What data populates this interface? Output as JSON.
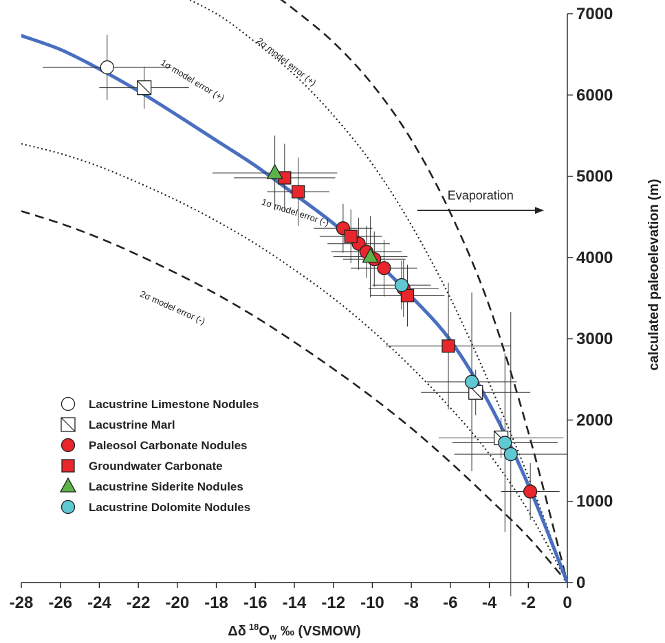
{
  "chart_data": {
    "type": "scatter",
    "title": "",
    "xlabel_prefix": "Δδ",
    "xlabel_sup": "18",
    "xlabel_main": "O",
    "xlabel_sub": "w",
    "xlabel_suffix": "‰ (VSMOW)",
    "ylabel": "calculated paleoelevation (m)",
    "xlim": [
      -28,
      0
    ],
    "ylim": [
      0,
      7000
    ],
    "x_ticks": [
      "-28",
      "-26",
      "-24",
      "-22",
      "-20",
      "-18",
      "-16",
      "-14",
      "-12",
      "-10",
      "-8",
      "-6",
      "-4",
      "-2",
      "0"
    ],
    "y_ticks": [
      "0",
      "1000",
      "2000",
      "3000",
      "4000",
      "5000",
      "6000",
      "7000"
    ],
    "grid": false,
    "legend_position": "bottom-left",
    "model_curve": {
      "color": "#4a6fc0",
      "points": [
        [
          -28,
          6730
        ],
        [
          -26,
          6560
        ],
        [
          -24,
          6320
        ],
        [
          -22,
          6050
        ],
        [
          -20,
          5750
        ],
        [
          -18,
          5440
        ],
        [
          -16,
          5130
        ],
        [
          -14,
          4780
        ],
        [
          -12,
          4420
        ],
        [
          -10,
          4000
        ],
        [
          -8,
          3520
        ],
        [
          -6,
          2980
        ],
        [
          -4,
          2200
        ],
        [
          -2,
          1200
        ],
        [
          0,
          0
        ]
      ]
    },
    "error_curves": [
      {
        "label": "2σ model error (+)",
        "style": "dashed",
        "points": [
          [
            -15.4,
            7300
          ],
          [
            -14,
            7050
          ],
          [
            -12,
            6650
          ],
          [
            -10,
            6130
          ],
          [
            -8,
            5450
          ],
          [
            -6,
            4550
          ],
          [
            -4,
            3400
          ],
          [
            -2,
            1850
          ],
          [
            0,
            0
          ]
        ]
      },
      {
        "label": "1σ model error (+)",
        "style": "dotted",
        "points": [
          [
            -20.5,
            7300
          ],
          [
            -18,
            7000
          ],
          [
            -16,
            6650
          ],
          [
            -14,
            6250
          ],
          [
            -12,
            5750
          ],
          [
            -10,
            5150
          ],
          [
            -8,
            4400
          ],
          [
            -6,
            3500
          ],
          [
            -4,
            2450
          ],
          [
            -2,
            1300
          ],
          [
            0,
            0
          ]
        ]
      },
      {
        "label": "1σ model error (-)",
        "style": "dotted",
        "points": [
          [
            -28,
            5400
          ],
          [
            -26,
            5280
          ],
          [
            -24,
            5120
          ],
          [
            -22,
            4920
          ],
          [
            -20,
            4700
          ],
          [
            -18,
            4450
          ],
          [
            -16,
            4170
          ],
          [
            -14,
            3850
          ],
          [
            -12,
            3500
          ],
          [
            -10,
            3100
          ],
          [
            -8,
            2650
          ],
          [
            -6,
            2150
          ],
          [
            -4,
            1580
          ],
          [
            -2,
            880
          ],
          [
            0,
            0
          ]
        ]
      },
      {
        "label": "2σ model error (-)",
        "style": "dashed",
        "points": [
          [
            -28,
            4570
          ],
          [
            -26,
            4420
          ],
          [
            -24,
            4240
          ],
          [
            -22,
            4030
          ],
          [
            -20,
            3800
          ],
          [
            -18,
            3550
          ],
          [
            -16,
            3270
          ],
          [
            -14,
            2960
          ],
          [
            -12,
            2630
          ],
          [
            -10,
            2280
          ],
          [
            -8,
            1900
          ],
          [
            -6,
            1480
          ],
          [
            -4,
            1030
          ],
          [
            -2,
            560
          ],
          [
            0,
            0
          ]
        ]
      }
    ],
    "series": [
      {
        "name": "Lacustrine Limestone Nodules",
        "marker": "circle-open",
        "color": "#ffffff",
        "points": [
          {
            "x": -23.6,
            "y": 6340,
            "xerr": 3.3,
            "yerr": 400
          }
        ]
      },
      {
        "name": "Lacustrine Marl",
        "marker": "square-half",
        "color": "#ffffff",
        "points": [
          {
            "x": -21.7,
            "y": 6090,
            "xerr": 2.3,
            "yerr": 260
          },
          {
            "x": -4.7,
            "y": 2340,
            "xerr": 2.8,
            "yerr": 280
          },
          {
            "x": -3.4,
            "y": 1780,
            "xerr": 3.2,
            "yerr": 250
          }
        ]
      },
      {
        "name": "Paleosol Carbonate Nodules",
        "marker": "circle",
        "color": "#e8262b",
        "points": [
          {
            "x": -11.5,
            "y": 4360,
            "xerr": 1.5,
            "yerr": 300
          },
          {
            "x": -10.7,
            "y": 4170,
            "xerr": 1.6,
            "yerr": 320
          },
          {
            "x": -10.3,
            "y": 4070,
            "xerr": 1.8,
            "yerr": 320
          },
          {
            "x": -9.9,
            "y": 3980,
            "xerr": 1.6,
            "yerr": 340
          },
          {
            "x": -9.4,
            "y": 3870,
            "xerr": 1.7,
            "yerr": 350
          },
          {
            "x": -8.4,
            "y": 3620,
            "xerr": 1.8,
            "yerr": 350
          },
          {
            "x": -1.9,
            "y": 1120,
            "xerr": 1.5,
            "yerr": 350
          }
        ]
      },
      {
        "name": "Groundwater Carbonate",
        "marker": "square",
        "color": "#e8262b",
        "points": [
          {
            "x": -14.5,
            "y": 4980,
            "xerr": 2.6,
            "yerr": 420
          },
          {
            "x": -13.8,
            "y": 4810,
            "xerr": 1.6,
            "yerr": 420
          },
          {
            "x": -11.1,
            "y": 4260,
            "xerr": 1.6,
            "yerr": 330
          },
          {
            "x": -8.2,
            "y": 3530,
            "xerr": 1.9,
            "yerr": 380
          },
          {
            "x": -6.1,
            "y": 2910,
            "xerr": 3.2,
            "yerr": 780
          }
        ]
      },
      {
        "name": "Lacustrine Siderite Nodules",
        "marker": "triangle",
        "color": "#5cb347",
        "points": [
          {
            "x": -15.0,
            "y": 5040,
            "xerr": 3.2,
            "yerr": 460
          },
          {
            "x": -10.1,
            "y": 4010,
            "xerr": 1.9,
            "yerr": 500
          }
        ]
      },
      {
        "name": "Lacustrine Dolomite Nodules",
        "marker": "circle",
        "color": "#5fc8d3",
        "points": [
          {
            "x": -8.5,
            "y": 3660,
            "xerr": 1.5,
            "yerr": 300
          },
          {
            "x": -4.9,
            "y": 2470,
            "xerr": 2.3,
            "yerr": 1100
          },
          {
            "x": -3.2,
            "y": 1720,
            "xerr": 2.7,
            "yerr": 1100
          },
          {
            "x": -2.9,
            "y": 1580,
            "xerr": 2.9,
            "yerr": 1750
          }
        ]
      }
    ],
    "annotations": [
      {
        "text": "2σ model error (+)",
        "x": -14.5,
        "y": 6380,
        "angle": 38
      },
      {
        "text": "1σ model error (+)",
        "x": -19.3,
        "y": 6150,
        "angle": 31
      },
      {
        "text": "1σ model error (-)",
        "x": -14.0,
        "y": 4520,
        "angle": 18
      },
      {
        "text": "2σ model error (-)",
        "x": -20.3,
        "y": 3350,
        "angle": 24
      }
    ],
    "evaporation_label": "Evaporation",
    "evaporation_arrow": {
      "x_from": -7.7,
      "x_to": -1.2,
      "y": 4580
    }
  }
}
